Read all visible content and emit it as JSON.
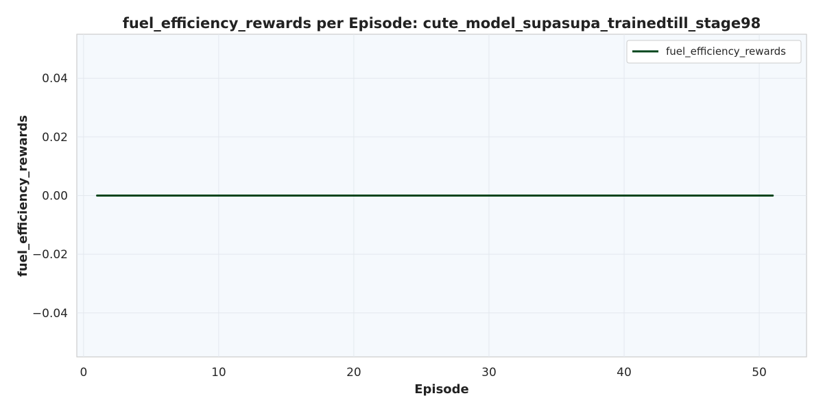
{
  "chart_data": {
    "type": "line",
    "title": "fuel_efficiency_rewards per Episode: cute_model_supasupa_trainedtill_stage98",
    "xlabel": "Episode",
    "ylabel": "fuel_efficiency_rewards",
    "xlim": [
      -0.5,
      53.5
    ],
    "ylim": [
      -0.055,
      0.055
    ],
    "xticks": [
      0,
      10,
      20,
      30,
      40,
      50
    ],
    "xtick_labels": [
      "0",
      "10",
      "20",
      "30",
      "40",
      "50"
    ],
    "yticks": [
      0.04,
      0.02,
      0.0,
      -0.02,
      -0.04
    ],
    "ytick_labels": [
      "0.04",
      "0.02",
      "0.00",
      "−0.02",
      "−0.04"
    ],
    "grid": true,
    "legend_position": "top-right",
    "series": [
      {
        "name": "fuel_efficiency_rewards",
        "color": "#00441b",
        "x": [
          1,
          2,
          3,
          4,
          5,
          6,
          7,
          8,
          9,
          10,
          11,
          12,
          13,
          14,
          15,
          16,
          17,
          18,
          19,
          20,
          21,
          22,
          23,
          24,
          25,
          26,
          27,
          28,
          29,
          30,
          31,
          32,
          33,
          34,
          35,
          36,
          37,
          38,
          39,
          40,
          41,
          42,
          43,
          44,
          45,
          46,
          47,
          48,
          49,
          50,
          51
        ],
        "y": [
          0,
          0,
          0,
          0,
          0,
          0,
          0,
          0,
          0,
          0,
          0,
          0,
          0,
          0,
          0,
          0,
          0,
          0,
          0,
          0,
          0,
          0,
          0,
          0,
          0,
          0,
          0,
          0,
          0,
          0,
          0,
          0,
          0,
          0,
          0,
          0,
          0,
          0,
          0,
          0,
          0,
          0,
          0,
          0,
          0,
          0,
          0,
          0,
          0,
          0,
          0
        ]
      }
    ],
    "colors": {
      "plot_background": "#f5f9fd",
      "grid": "#e3e8ee",
      "axes_edge": "#cccccc"
    }
  }
}
